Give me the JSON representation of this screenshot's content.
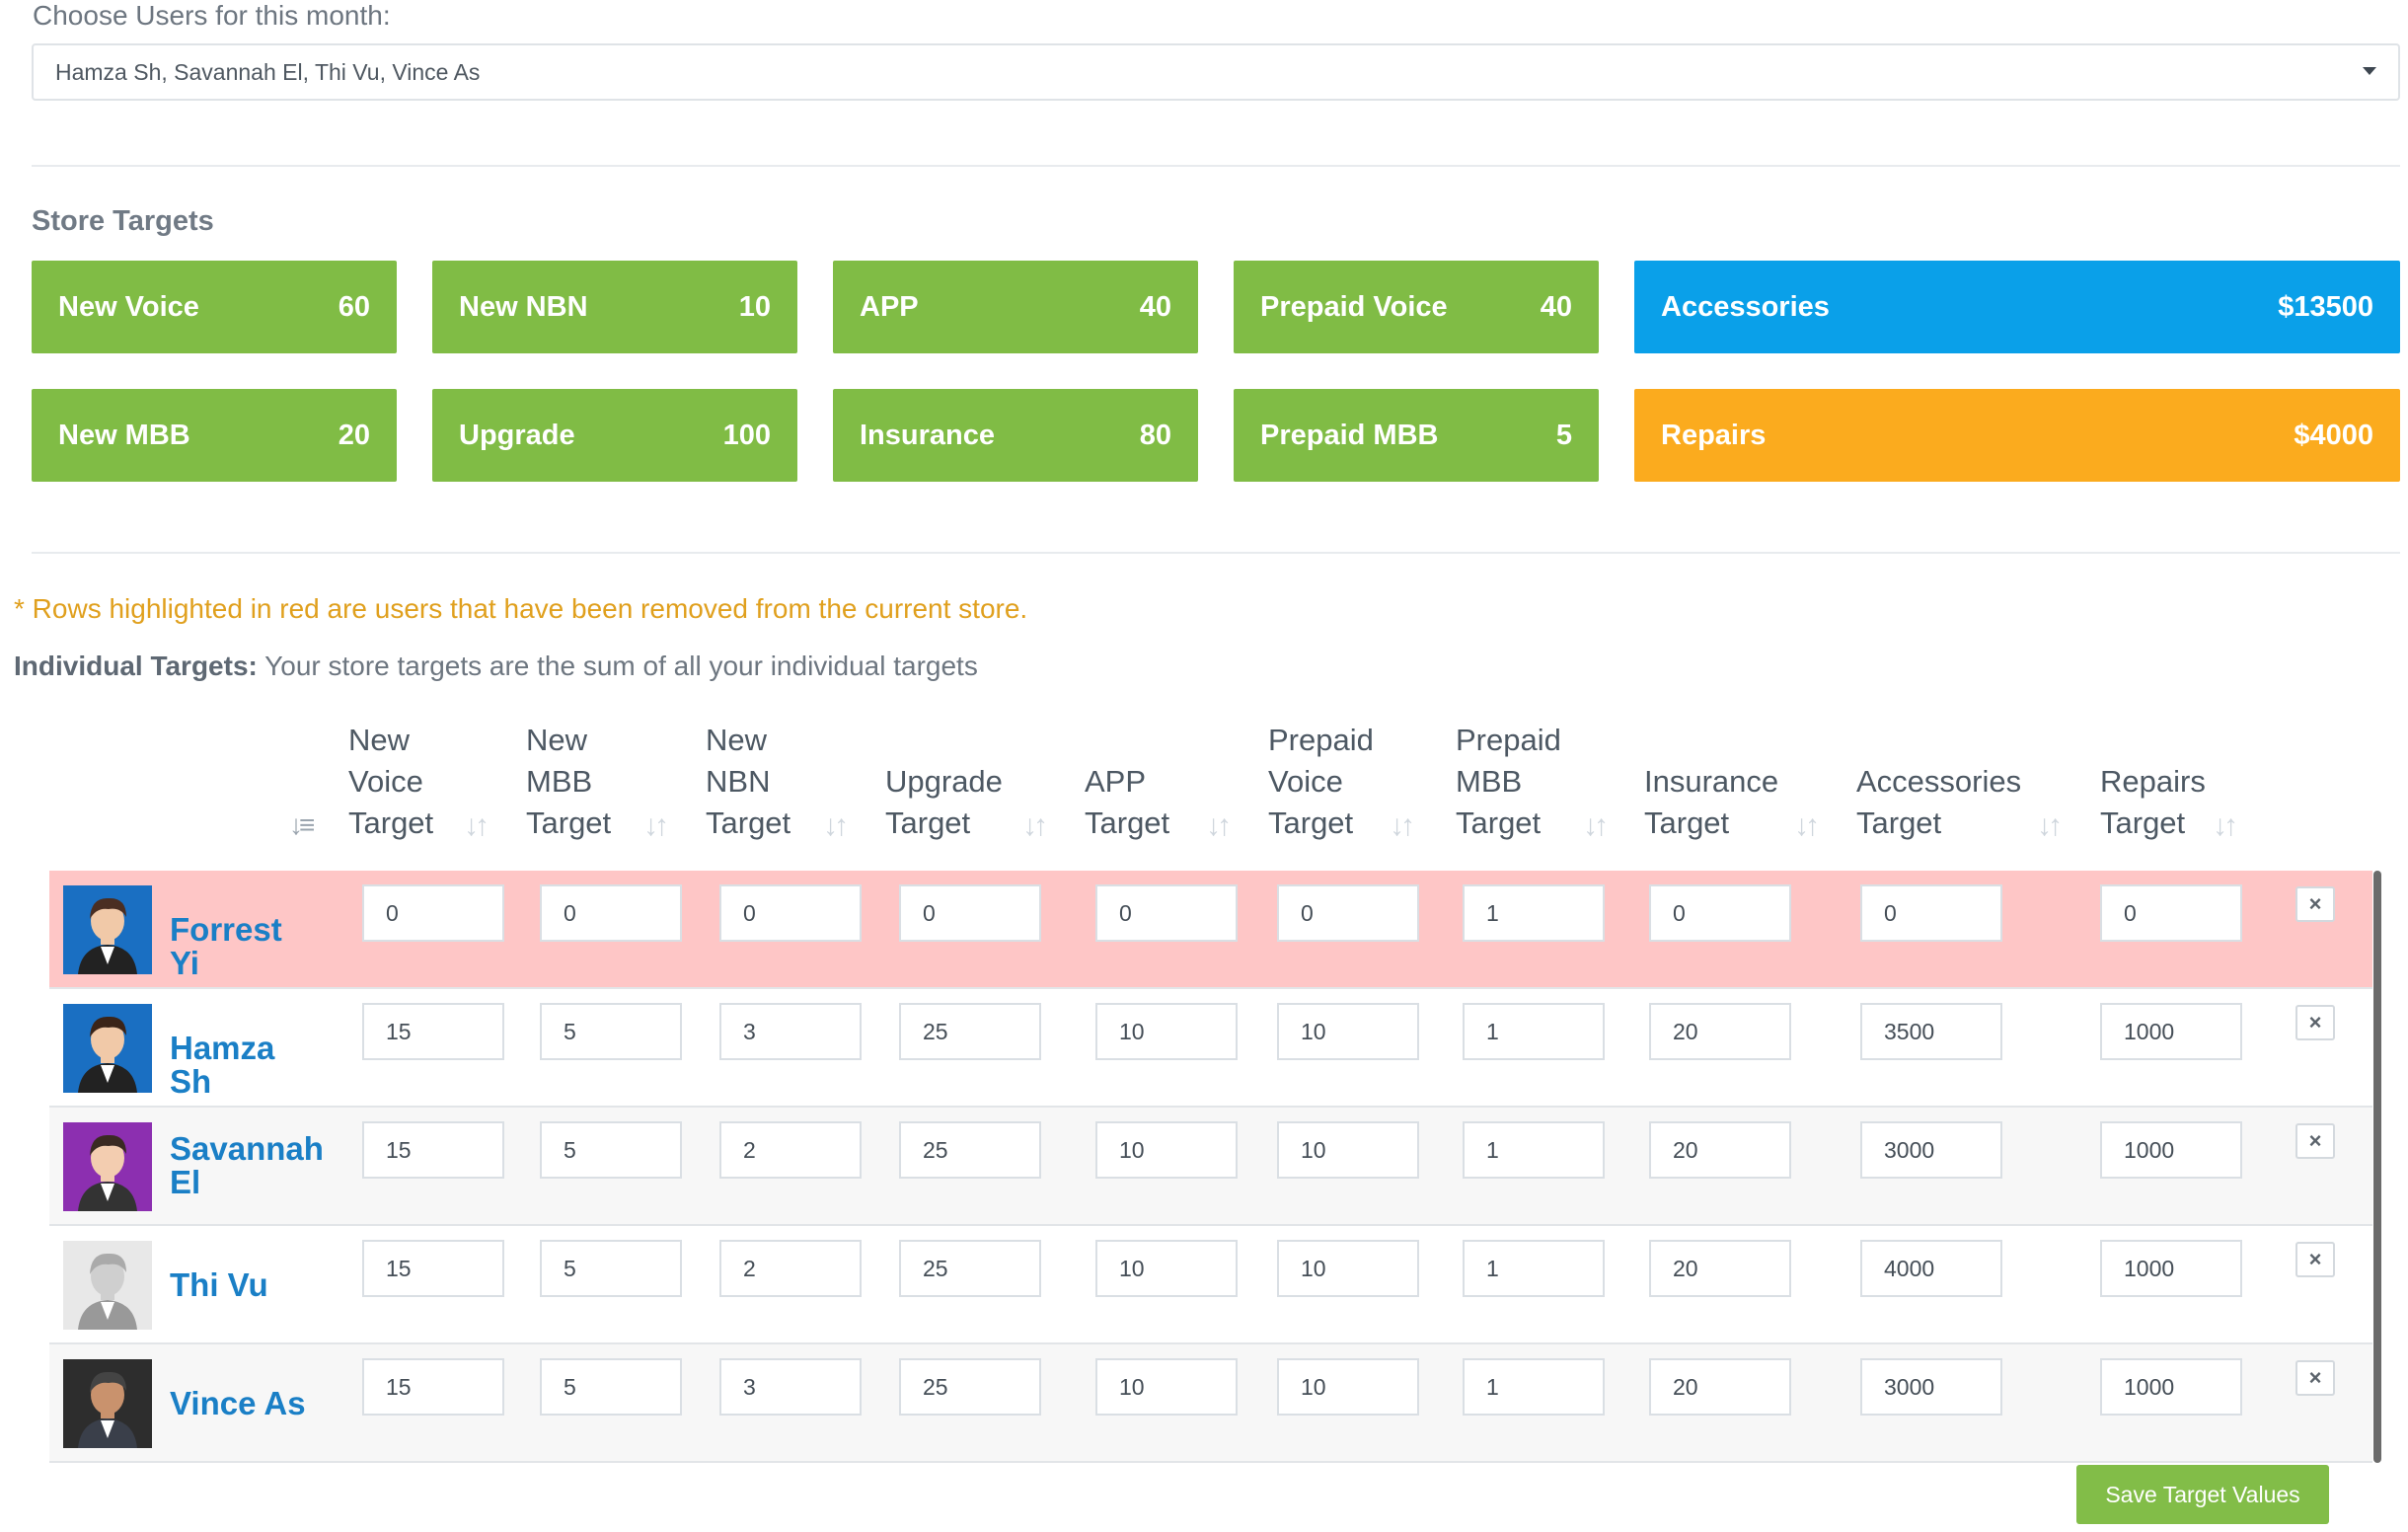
{
  "user_select": {
    "label": "Choose Users for this month:",
    "value": "Hamza Sh, Savannah El, Thi Vu, Vince As"
  },
  "store_targets": {
    "heading": "Store Targets",
    "tiles": [
      {
        "label": "New Voice",
        "value": "60",
        "color": "#80bc45"
      },
      {
        "label": "New NBN",
        "value": "10",
        "color": "#80bc45"
      },
      {
        "label": "APP",
        "value": "40",
        "color": "#80bc45"
      },
      {
        "label": "Prepaid Voice",
        "value": "40",
        "color": "#80bc45"
      },
      {
        "label": "Accessories",
        "value": "$13500",
        "color": "#0aa0e9"
      },
      {
        "label": "New MBB",
        "value": "20",
        "color": "#80bc45"
      },
      {
        "label": "Upgrade",
        "value": "100",
        "color": "#80bc45"
      },
      {
        "label": "Insurance",
        "value": "80",
        "color": "#80bc45"
      },
      {
        "label": "Prepaid MBB",
        "value": "5",
        "color": "#80bc45"
      },
      {
        "label": "Repairs",
        "value": "$4000",
        "color": "#fbab1e"
      }
    ]
  },
  "notice": "* Rows highlighted in red are users that have been removed from the current store.",
  "individual": {
    "title": "Individual Targets:",
    "subtitle": "Your store targets are the sum of all your individual targets"
  },
  "table": {
    "columns": [
      {
        "lines": [
          "New",
          "Voice",
          "Target"
        ]
      },
      {
        "lines": [
          "New",
          "MBB",
          "Target"
        ]
      },
      {
        "lines": [
          "New",
          "NBN",
          "Target"
        ]
      },
      {
        "lines": [
          "Upgrade",
          "Target"
        ]
      },
      {
        "lines": [
          "APP",
          "Target"
        ]
      },
      {
        "lines": [
          "Prepaid",
          "Voice",
          "Target"
        ]
      },
      {
        "lines": [
          "Prepaid",
          "MBB",
          "Target"
        ]
      },
      {
        "lines": [
          "Insurance",
          "Target"
        ]
      },
      {
        "lines": [
          "Accessories",
          "Target"
        ]
      },
      {
        "lines": [
          "Repairs",
          "Target"
        ]
      }
    ],
    "rows": [
      {
        "name": "Forrest Yi",
        "removed": true,
        "values": [
          "0",
          "0",
          "0",
          "0",
          "0",
          "0",
          "1",
          "0",
          "0",
          "0"
        ]
      },
      {
        "name": "Hamza Sh",
        "removed": false,
        "values": [
          "15",
          "5",
          "3",
          "25",
          "10",
          "10",
          "1",
          "20",
          "3500",
          "1000"
        ]
      },
      {
        "name": "Savannah El",
        "removed": false,
        "values": [
          "15",
          "5",
          "2",
          "25",
          "10",
          "10",
          "1",
          "20",
          "3000",
          "1000"
        ]
      },
      {
        "name": "Thi Vu",
        "removed": false,
        "values": [
          "15",
          "5",
          "2",
          "25",
          "10",
          "10",
          "1",
          "20",
          "4000",
          "1000"
        ]
      },
      {
        "name": "Vince As",
        "removed": false,
        "values": [
          "15",
          "5",
          "3",
          "25",
          "10",
          "10",
          "1",
          "20",
          "3000",
          "1000"
        ]
      }
    ],
    "delete_icon": "×"
  },
  "save_button": "Save Target Values",
  "colors": {
    "removed_row": "#fec6c6",
    "alt_row": "#f7f7f7",
    "name_link": "#1a7fc6"
  }
}
